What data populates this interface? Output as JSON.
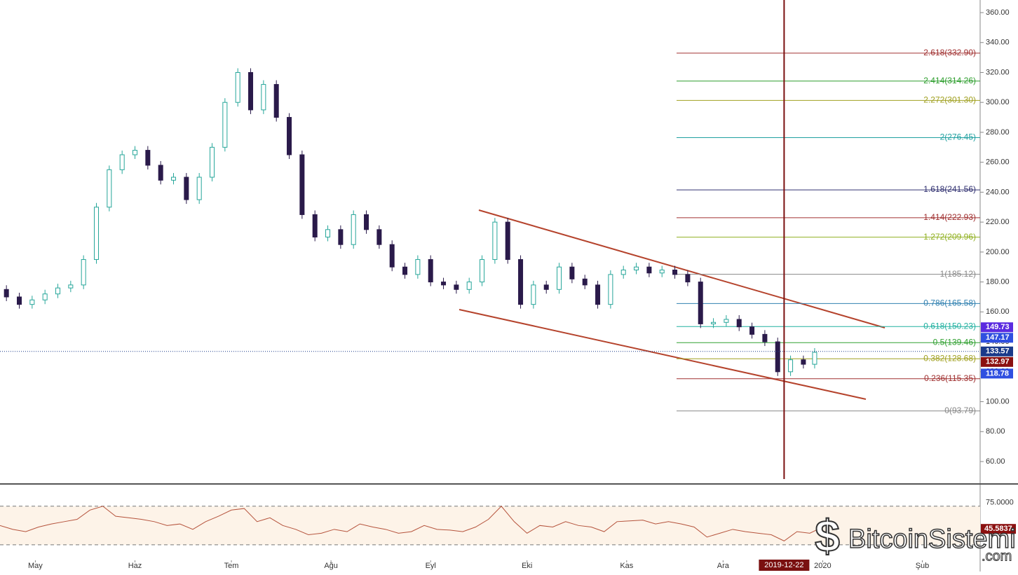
{
  "chart_data": {
    "type": "candlestick",
    "x": [
      -11,
      -7,
      -3,
      1,
      5,
      9,
      13,
      17,
      21,
      25,
      29,
      33,
      37,
      41,
      45,
      49,
      53,
      57,
      61,
      65,
      69,
      73,
      77,
      81,
      85,
      89,
      93,
      97,
      101,
      105,
      109,
      113,
      117,
      121,
      125,
      129,
      133,
      137,
      141,
      145,
      149,
      153,
      157,
      161,
      165,
      169,
      173,
      177,
      181,
      185,
      189,
      193,
      197,
      201,
      205,
      209,
      213,
      217,
      221,
      225,
      229,
      233,
      237,
      241,
      244
    ],
    "close": [
      175,
      170,
      165,
      168,
      172,
      176,
      178,
      195,
      230,
      255,
      265,
      268,
      258,
      248,
      250,
      235,
      250,
      270,
      300,
      320,
      295,
      312,
      290,
      265,
      225,
      210,
      215,
      205,
      225,
      215,
      205,
      190,
      185,
      195,
      180,
      178,
      175,
      180,
      195,
      220,
      195,
      165,
      178,
      175,
      190,
      182,
      178,
      165,
      185,
      188,
      190,
      186,
      188,
      185,
      180,
      152,
      153,
      155,
      150,
      145,
      140,
      120,
      128,
      125,
      133
    ],
    "rsi": [
      50,
      45,
      42,
      48,
      52,
      55,
      58,
      70,
      75,
      62,
      60,
      58,
      55,
      50,
      52,
      45,
      55,
      62,
      70,
      72,
      55,
      60,
      50,
      45,
      38,
      40,
      45,
      42,
      52,
      48,
      45,
      40,
      42,
      50,
      45,
      44,
      42,
      48,
      58,
      75,
      55,
      40,
      50,
      48,
      55,
      50,
      48,
      42,
      55,
      56,
      57,
      52,
      55,
      52,
      48,
      35,
      40,
      45,
      42,
      40,
      38,
      30,
      42,
      40,
      46
    ],
    "up_color": "#26a69a",
    "down_color": "#2a1a4a",
    "rsi_color": "#b5533c",
    "xlim": [
      -11,
      294
    ],
    "xticks": [
      {
        "value": 0,
        "label": "May"
      },
      {
        "value": 31,
        "label": "Haz"
      },
      {
        "value": 61,
        "label": "Tem"
      },
      {
        "value": 92,
        "label": "Ağu"
      },
      {
        "value": 123,
        "label": "Eyl"
      },
      {
        "value": 153,
        "label": "Eki"
      },
      {
        "value": 184,
        "label": "Kas"
      },
      {
        "value": 214,
        "label": "Ara"
      },
      {
        "value": 245,
        "label": "2020"
      },
      {
        "value": 276,
        "label": "Şub"
      }
    ],
    "ylim": [
      60,
      360
    ],
    "yticks": [
      {
        "value": 60,
        "label": "60.00"
      },
      {
        "value": 80,
        "label": "80.00"
      },
      {
        "value": 100,
        "label": "100.00"
      },
      {
        "value": 120,
        "label": "120.00"
      },
      {
        "value": 140,
        "label": "140.00"
      },
      {
        "value": 160,
        "label": "160.00"
      },
      {
        "value": 180,
        "label": "180.00"
      },
      {
        "value": 200,
        "label": "200.00"
      },
      {
        "value": 220,
        "label": "220.00"
      },
      {
        "value": 240,
        "label": "240.00"
      },
      {
        "value": 260,
        "label": "260.00"
      },
      {
        "value": 280,
        "label": "280.00"
      },
      {
        "value": 300,
        "label": "300.00"
      },
      {
        "value": 320,
        "label": "320.00"
      },
      {
        "value": 340,
        "label": "340.00"
      },
      {
        "value": 360,
        "label": "360.00"
      }
    ],
    "fib_levels": [
      {
        "label": "2.618(332.90)",
        "value": 332.9,
        "color": "#a03030"
      },
      {
        "label": "2.414(314.26)",
        "value": 314.26,
        "color": "#2e9e2e"
      },
      {
        "label": "2.272(301.30)",
        "value": 301.3,
        "color": "#a0a020"
      },
      {
        "label": "2(276.45)",
        "value": 276.45,
        "color": "#20a0a0"
      },
      {
        "label": "1.618(241.56)",
        "value": 241.56,
        "color": "#303070"
      },
      {
        "label": "1.414(222.93)",
        "value": 222.93,
        "color": "#a03030"
      },
      {
        "label": "1.272(209.96)",
        "value": 209.96,
        "color": "#90b020"
      },
      {
        "label": "1(185.12)",
        "value": 185.12,
        "color": "#888888"
      },
      {
        "label": "0.786(165.58)",
        "value": 165.58,
        "color": "#3080b0"
      },
      {
        "label": "0.618(150.23)",
        "value": 150.23,
        "color": "#20b0a0"
      },
      {
        "label": "0.5(139.46)",
        "value": 139.46,
        "color": "#30a030"
      },
      {
        "label": "0.382(128.68)",
        "value": 128.68,
        "color": "#a0a020"
      },
      {
        "label": "0.236(115.35)",
        "value": 115.35,
        "color": "#a03030"
      },
      {
        "label": "0(93.79)",
        "value": 93.79,
        "color": "#888888"
      }
    ],
    "price_badges": [
      {
        "label": "149.73",
        "value": 149.73,
        "color": "#5b2be0"
      },
      {
        "label": "147.17",
        "value": 147.17,
        "color": "#2f4fe0"
      },
      {
        "label": "133.57",
        "value": 133.57,
        "color": "#1a3a8a"
      },
      {
        "label": "132.97",
        "value": 132.97,
        "color": "#8b1010"
      },
      {
        "label": "118.78",
        "value": 118.78,
        "color": "#2f4fe0"
      }
    ],
    "marker_date": "2019-12-22",
    "marker_x": 233,
    "rsi_ylim": [
      14,
      102
    ],
    "rsi_yticks": [
      {
        "value": 75,
        "label": "75.0000"
      }
    ],
    "rsi_levels": [
      75,
      25
    ],
    "rsi_badge": {
      "label": "45.5837",
      "value": 45.5837
    },
    "watermark": "BitcoinSistemi",
    "watermark_suffix": ".com"
  }
}
